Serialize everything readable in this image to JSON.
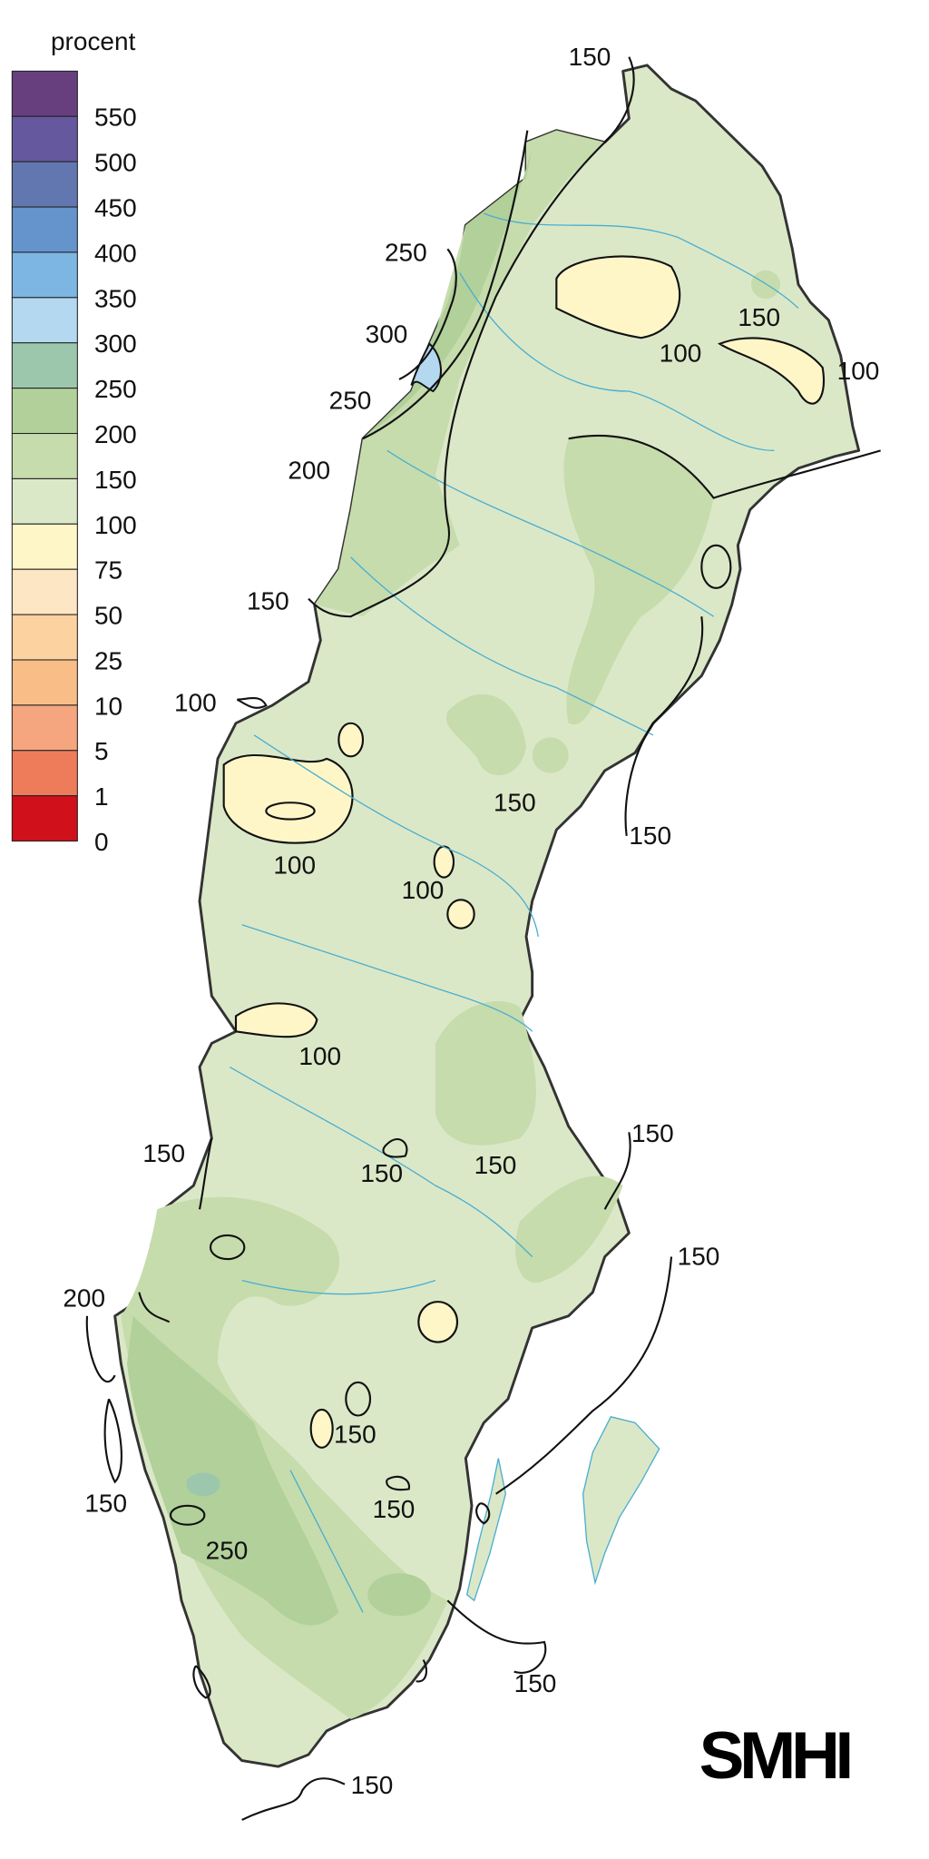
{
  "legend": {
    "title": "procent",
    "labels": [
      "550",
      "500",
      "450",
      "400",
      "350",
      "300",
      "250",
      "200",
      "150",
      "100",
      "75",
      "50",
      "25",
      "10",
      "5",
      "1",
      "0"
    ],
    "colors": [
      "#673f7f",
      "#66589e",
      "#6277b0",
      "#6593cc",
      "#7db6e2",
      "#b3d8f0",
      "#9dc7ad",
      "#b2d09a",
      "#c6dcad",
      "#dbe8c7",
      "#fff6c8",
      "#fde6c3",
      "#fcd2a0",
      "#f9be88",
      "#f5a67f",
      "#ee7c5b",
      "#d0101a"
    ]
  },
  "map": {
    "base_color": "#dbe8c7",
    "outline_color": "#333333",
    "river_color": "#4aaed0",
    "contour_labels": [
      "150",
      "250",
      "300",
      "250",
      "200",
      "150",
      "100",
      "100",
      "150",
      "150",
      "100",
      "100",
      "100",
      "100",
      "150",
      "150",
      "150",
      "150",
      "150",
      "200",
      "150",
      "150",
      "250",
      "150",
      "150",
      "150"
    ]
  },
  "logo": {
    "text": "SMHI"
  }
}
